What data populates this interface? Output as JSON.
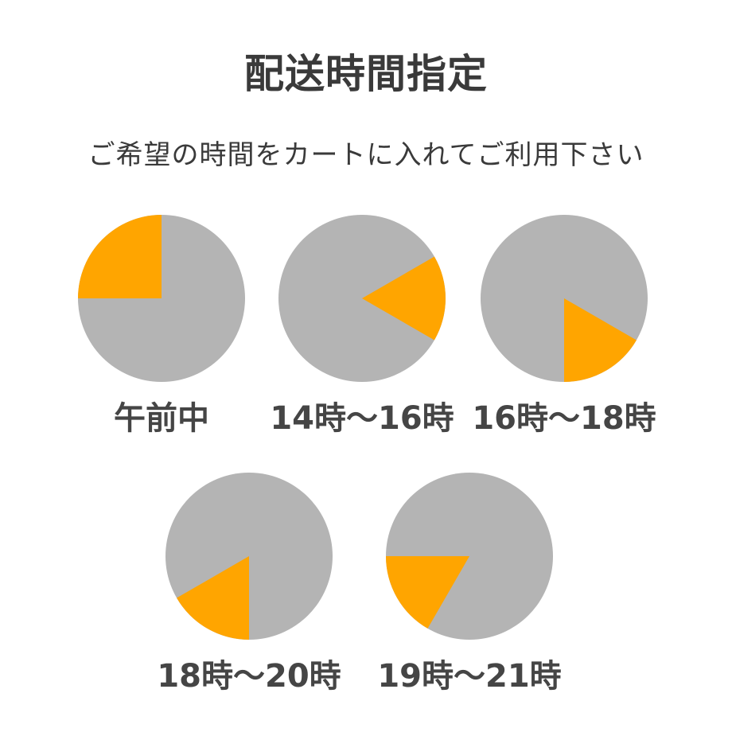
{
  "title": "配送時間指定",
  "subtitle": "ご希望の時間をカートに入れてご利用下さい",
  "colors": {
    "dial": "#b4b4b4",
    "highlight": "#ffa500",
    "text": "#3a3a3a"
  },
  "clock_hours": 12,
  "time_slots": [
    {
      "label": "午前中",
      "start_hour": 9,
      "end_hour": 12
    },
    {
      "label": "14時〜16時",
      "start_hour": 2,
      "end_hour": 4
    },
    {
      "label": "16時〜18時",
      "start_hour": 4,
      "end_hour": 6
    },
    {
      "label": "18時〜20時",
      "start_hour": 6,
      "end_hour": 8
    },
    {
      "label": "19時〜21時",
      "start_hour": 7,
      "end_hour": 9
    }
  ]
}
